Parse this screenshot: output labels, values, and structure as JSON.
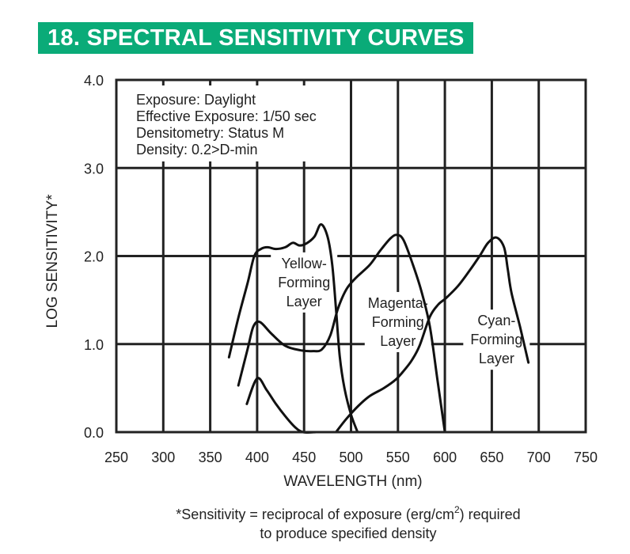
{
  "title": "18. SPECTRAL SENSITIVITY CURVES",
  "colors": {
    "title_bg": "#0aab78",
    "line": "#111111"
  },
  "chart_data": {
    "type": "line",
    "xlabel": "WAVELENGTH (nm)",
    "ylabel": "LOG SENSITIVITY*",
    "xlim": [
      250,
      750
    ],
    "ylim": [
      0,
      4
    ],
    "xticks": [
      "250",
      "300",
      "350",
      "400",
      "450",
      "500",
      "550",
      "600",
      "650",
      "700",
      "750"
    ],
    "yticks": [
      "0.0",
      "1.0",
      "2.0",
      "3.0",
      "4.0"
    ],
    "grid": true,
    "info_box": [
      "Exposure: Daylight",
      "Effective Exposure: 1/50 sec",
      "Densitometry: Status M",
      "Density: 0.2>D-min"
    ],
    "annotations": [
      {
        "lines": [
          "Yellow-",
          "Forming",
          "Layer"
        ],
        "x": 450,
        "y": 1.7
      },
      {
        "lines": [
          "Magenta-",
          "Forming",
          "Layer"
        ],
        "x": 550,
        "y": 1.25
      },
      {
        "lines": [
          "Cyan-",
          "Forming",
          "Layer"
        ],
        "x": 655,
        "y": 1.05
      }
    ],
    "series": [
      {
        "points": [
          [
            370,
            0.85
          ],
          [
            380,
            1.3
          ],
          [
            390,
            1.7
          ],
          [
            397,
            2.0
          ],
          [
            404,
            2.08
          ],
          [
            411,
            2.1
          ],
          [
            420,
            2.08
          ],
          [
            430,
            2.1
          ],
          [
            438,
            2.15
          ],
          [
            445,
            2.12
          ],
          [
            452,
            2.14
          ],
          [
            461,
            2.22
          ],
          [
            468,
            2.36
          ],
          [
            475,
            2.22
          ],
          [
            480,
            1.9
          ],
          [
            484,
            1.4
          ],
          [
            488,
            0.86
          ],
          [
            493,
            0.5
          ],
          [
            500,
            0.2
          ],
          [
            507,
            0
          ]
        ]
      },
      {
        "points": [
          [
            380,
            0.53
          ],
          [
            390,
            0.95
          ],
          [
            396,
            1.2
          ],
          [
            403,
            1.25
          ],
          [
            415,
            1.12
          ],
          [
            430,
            0.98
          ],
          [
            446,
            0.93
          ],
          [
            460,
            0.92
          ],
          [
            469,
            0.94
          ],
          [
            478,
            1.1
          ],
          [
            486,
            1.4
          ],
          [
            495,
            1.62
          ],
          [
            505,
            1.75
          ],
          [
            520,
            1.9
          ],
          [
            531,
            2.06
          ],
          [
            542,
            2.2
          ],
          [
            549,
            2.24
          ],
          [
            556,
            2.18
          ],
          [
            566,
            1.9
          ],
          [
            575,
            1.6
          ],
          [
            584,
            1.2
          ],
          [
            592,
            0.6
          ],
          [
            600,
            0
          ]
        ]
      },
      {
        "points": [
          [
            389,
            0.32
          ],
          [
            400,
            0.61
          ],
          [
            410,
            0.48
          ],
          [
            420,
            0.32
          ],
          [
            430,
            0.18
          ],
          [
            440,
            0.06
          ],
          [
            449,
            0.0
          ],
          [
            463,
            0.0
          ]
        ]
      },
      {
        "points": [
          [
            484,
            0
          ],
          [
            495,
            0.15
          ],
          [
            508,
            0.3
          ],
          [
            520,
            0.41
          ],
          [
            535,
            0.5
          ],
          [
            548,
            0.6
          ],
          [
            558,
            0.72
          ],
          [
            565,
            0.82
          ],
          [
            573,
            0.98
          ],
          [
            584,
            1.31
          ],
          [
            593,
            1.45
          ],
          [
            601,
            1.52
          ],
          [
            614,
            1.66
          ],
          [
            626,
            1.83
          ],
          [
            637,
            2.0
          ],
          [
            646,
            2.15
          ],
          [
            655,
            2.21
          ],
          [
            663,
            2.1
          ],
          [
            667,
            1.85
          ],
          [
            671,
            1.58
          ],
          [
            680,
            1.2
          ],
          [
            689,
            0.79
          ]
        ]
      }
    ]
  },
  "footnote": [
    "*Sensitivity = reciprocal of exposure (erg/cm",
    "2",
    ") required",
    "to produce specified density"
  ]
}
